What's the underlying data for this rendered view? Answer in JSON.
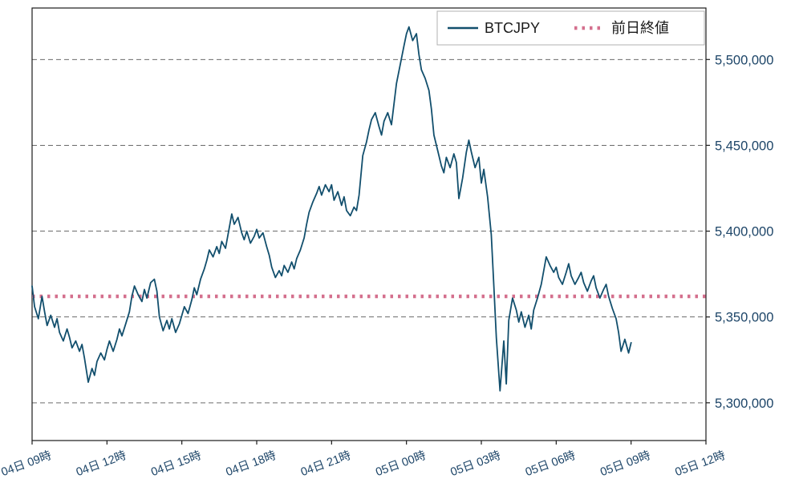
{
  "chart_data": {
    "type": "line",
    "title": "",
    "xlabel": "",
    "ylabel": "",
    "grid": "horizontal-dashed",
    "legend_position": "top-right-inside",
    "x_unit": "hours since 04日 09時",
    "xlim": [
      0,
      27
    ],
    "ylim": [
      5278000,
      5530000
    ],
    "colors": {
      "price_line": "#124f6d",
      "reference_line": "#d4708e",
      "axis_text": "#1d4568",
      "gridline": "#555555",
      "spine": "#1a1a1a",
      "legend_border": "#b0b0b0",
      "legend_text": "#1a1a1a",
      "background": "#ffffff"
    },
    "x_ticks": [
      {
        "t": 0,
        "label": "04日 09時"
      },
      {
        "t": 3,
        "label": "04日 12時"
      },
      {
        "t": 6,
        "label": "04日 15時"
      },
      {
        "t": 9,
        "label": "04日 18時"
      },
      {
        "t": 12,
        "label": "04日 21時"
      },
      {
        "t": 15,
        "label": "05日 00時"
      },
      {
        "t": 18,
        "label": "05日 03時"
      },
      {
        "t": 21,
        "label": "05日 06時"
      },
      {
        "t": 24,
        "label": "05日 09時"
      },
      {
        "t": 27,
        "label": "05日 12時"
      }
    ],
    "y_ticks": [
      {
        "value": 5300000,
        "label": "5,300,000"
      },
      {
        "value": 5350000,
        "label": "5,350,000"
      },
      {
        "value": 5400000,
        "label": "5,400,000"
      },
      {
        "value": 5450000,
        "label": "5,450,000"
      },
      {
        "value": 5500000,
        "label": "5,500,000"
      }
    ],
    "legend": [
      {
        "label": "BTCJPY",
        "style": "solid",
        "color": "#124f6d"
      },
      {
        "label": "前日終値",
        "style": "dotted",
        "color": "#d4708e"
      }
    ],
    "reference_line": {
      "name": "前日終値",
      "value": 5362000,
      "style": "dotted",
      "color": "#d4708e"
    },
    "series": [
      {
        "name": "BTCJPY",
        "style": "solid",
        "color": "#124f6d",
        "points": [
          [
            0,
            5368000
          ],
          [
            0.1,
            5356000
          ],
          [
            0.25,
            5349000
          ],
          [
            0.4,
            5362000
          ],
          [
            0.5,
            5353000
          ],
          [
            0.6,
            5345000
          ],
          [
            0.75,
            5351000
          ],
          [
            0.9,
            5344000
          ],
          [
            1,
            5349000
          ],
          [
            1.1,
            5341000
          ],
          [
            1.25,
            5336000
          ],
          [
            1.4,
            5343000
          ],
          [
            1.5,
            5338000
          ],
          [
            1.6,
            5332000
          ],
          [
            1.75,
            5336000
          ],
          [
            1.9,
            5330000
          ],
          [
            2,
            5334000
          ],
          [
            2.1,
            5326000
          ],
          [
            2.25,
            5312000
          ],
          [
            2.4,
            5320000
          ],
          [
            2.5,
            5316000
          ],
          [
            2.6,
            5324000
          ],
          [
            2.75,
            5329000
          ],
          [
            2.9,
            5325000
          ],
          [
            3,
            5331000
          ],
          [
            3.1,
            5336000
          ],
          [
            3.25,
            5330000
          ],
          [
            3.4,
            5337000
          ],
          [
            3.5,
            5343000
          ],
          [
            3.6,
            5339000
          ],
          [
            3.75,
            5346000
          ],
          [
            3.9,
            5353000
          ],
          [
            4,
            5362000
          ],
          [
            4.1,
            5368000
          ],
          [
            4.25,
            5363000
          ],
          [
            4.4,
            5359000
          ],
          [
            4.5,
            5366000
          ],
          [
            4.6,
            5361000
          ],
          [
            4.75,
            5370000
          ],
          [
            4.9,
            5372000
          ],
          [
            5,
            5365000
          ],
          [
            5.1,
            5350000
          ],
          [
            5.25,
            5342000
          ],
          [
            5.4,
            5348000
          ],
          [
            5.5,
            5343000
          ],
          [
            5.6,
            5349000
          ],
          [
            5.75,
            5341000
          ],
          [
            5.9,
            5346000
          ],
          [
            6,
            5351000
          ],
          [
            6.1,
            5356000
          ],
          [
            6.25,
            5352000
          ],
          [
            6.4,
            5360000
          ],
          [
            6.5,
            5367000
          ],
          [
            6.6,
            5363000
          ],
          [
            6.75,
            5372000
          ],
          [
            6.9,
            5378000
          ],
          [
            7,
            5383000
          ],
          [
            7.1,
            5389000
          ],
          [
            7.25,
            5385000
          ],
          [
            7.4,
            5391000
          ],
          [
            7.5,
            5387000
          ],
          [
            7.6,
            5394000
          ],
          [
            7.75,
            5390000
          ],
          [
            7.9,
            5402000
          ],
          [
            8,
            5410000
          ],
          [
            8.1,
            5404000
          ],
          [
            8.25,
            5408000
          ],
          [
            8.4,
            5399000
          ],
          [
            8.5,
            5395000
          ],
          [
            8.6,
            5400000
          ],
          [
            8.75,
            5393000
          ],
          [
            8.9,
            5397000
          ],
          [
            9,
            5401000
          ],
          [
            9.1,
            5396000
          ],
          [
            9.25,
            5399000
          ],
          [
            9.4,
            5391000
          ],
          [
            9.5,
            5386000
          ],
          [
            9.6,
            5379000
          ],
          [
            9.75,
            5373000
          ],
          [
            9.9,
            5377000
          ],
          [
            10,
            5374000
          ],
          [
            10.1,
            5380000
          ],
          [
            10.25,
            5376000
          ],
          [
            10.4,
            5382000
          ],
          [
            10.5,
            5378000
          ],
          [
            10.6,
            5384000
          ],
          [
            10.75,
            5389000
          ],
          [
            10.9,
            5396000
          ],
          [
            11,
            5404000
          ],
          [
            11.1,
            5411000
          ],
          [
            11.25,
            5417000
          ],
          [
            11.4,
            5422000
          ],
          [
            11.5,
            5426000
          ],
          [
            11.6,
            5421000
          ],
          [
            11.75,
            5427000
          ],
          [
            11.9,
            5423000
          ],
          [
            12,
            5427000
          ],
          [
            12.1,
            5418000
          ],
          [
            12.25,
            5423000
          ],
          [
            12.4,
            5415000
          ],
          [
            12.5,
            5420000
          ],
          [
            12.6,
            5412000
          ],
          [
            12.75,
            5409000
          ],
          [
            12.9,
            5414000
          ],
          [
            13,
            5412000
          ],
          [
            13.1,
            5421000
          ],
          [
            13.25,
            5444000
          ],
          [
            13.4,
            5452000
          ],
          [
            13.5,
            5459000
          ],
          [
            13.6,
            5465000
          ],
          [
            13.75,
            5469000
          ],
          [
            13.9,
            5461000
          ],
          [
            14,
            5456000
          ],
          [
            14.1,
            5464000
          ],
          [
            14.25,
            5469000
          ],
          [
            14.4,
            5462000
          ],
          [
            14.5,
            5474000
          ],
          [
            14.6,
            5486000
          ],
          [
            14.75,
            5497000
          ],
          [
            14.9,
            5508000
          ],
          [
            15,
            5515000
          ],
          [
            15.1,
            5519000
          ],
          [
            15.25,
            5511000
          ],
          [
            15.4,
            5515000
          ],
          [
            15.5,
            5503000
          ],
          [
            15.6,
            5494000
          ],
          [
            15.75,
            5489000
          ],
          [
            15.9,
            5482000
          ],
          [
            16,
            5471000
          ],
          [
            16.1,
            5456000
          ],
          [
            16.25,
            5447000
          ],
          [
            16.4,
            5438000
          ],
          [
            16.5,
            5434000
          ],
          [
            16.6,
            5443000
          ],
          [
            16.75,
            5437000
          ],
          [
            16.9,
            5445000
          ],
          [
            17,
            5440000
          ],
          [
            17.1,
            5419000
          ],
          [
            17.25,
            5431000
          ],
          [
            17.4,
            5446000
          ],
          [
            17.5,
            5453000
          ],
          [
            17.6,
            5446000
          ],
          [
            17.75,
            5437000
          ],
          [
            17.9,
            5443000
          ],
          [
            18,
            5428000
          ],
          [
            18.1,
            5436000
          ],
          [
            18.25,
            5420000
          ],
          [
            18.4,
            5398000
          ],
          [
            18.5,
            5368000
          ],
          [
            18.6,
            5338000
          ],
          [
            18.75,
            5307000
          ],
          [
            18.9,
            5336000
          ],
          [
            19,
            5311000
          ],
          [
            19.1,
            5348000
          ],
          [
            19.25,
            5361000
          ],
          [
            19.4,
            5354000
          ],
          [
            19.5,
            5347000
          ],
          [
            19.6,
            5353000
          ],
          [
            19.75,
            5344000
          ],
          [
            19.9,
            5351000
          ],
          [
            20,
            5343000
          ],
          [
            20.1,
            5354000
          ],
          [
            20.25,
            5361000
          ],
          [
            20.4,
            5369000
          ],
          [
            20.5,
            5377000
          ],
          [
            20.6,
            5385000
          ],
          [
            20.75,
            5380000
          ],
          [
            20.9,
            5376000
          ],
          [
            21,
            5379000
          ],
          [
            21.1,
            5373000
          ],
          [
            21.25,
            5369000
          ],
          [
            21.4,
            5376000
          ],
          [
            21.5,
            5381000
          ],
          [
            21.6,
            5374000
          ],
          [
            21.75,
            5369000
          ],
          [
            21.9,
            5373000
          ],
          [
            22,
            5376000
          ],
          [
            22.1,
            5370000
          ],
          [
            22.25,
            5365000
          ],
          [
            22.4,
            5371000
          ],
          [
            22.5,
            5374000
          ],
          [
            22.6,
            5367000
          ],
          [
            22.75,
            5361000
          ],
          [
            22.9,
            5366000
          ],
          [
            23,
            5369000
          ],
          [
            23.1,
            5362000
          ],
          [
            23.25,
            5355000
          ],
          [
            23.4,
            5349000
          ],
          [
            23.5,
            5341000
          ],
          [
            23.6,
            5330000
          ],
          [
            23.75,
            5337000
          ],
          [
            23.9,
            5329000
          ],
          [
            24,
            5335000
          ]
        ]
      }
    ]
  }
}
